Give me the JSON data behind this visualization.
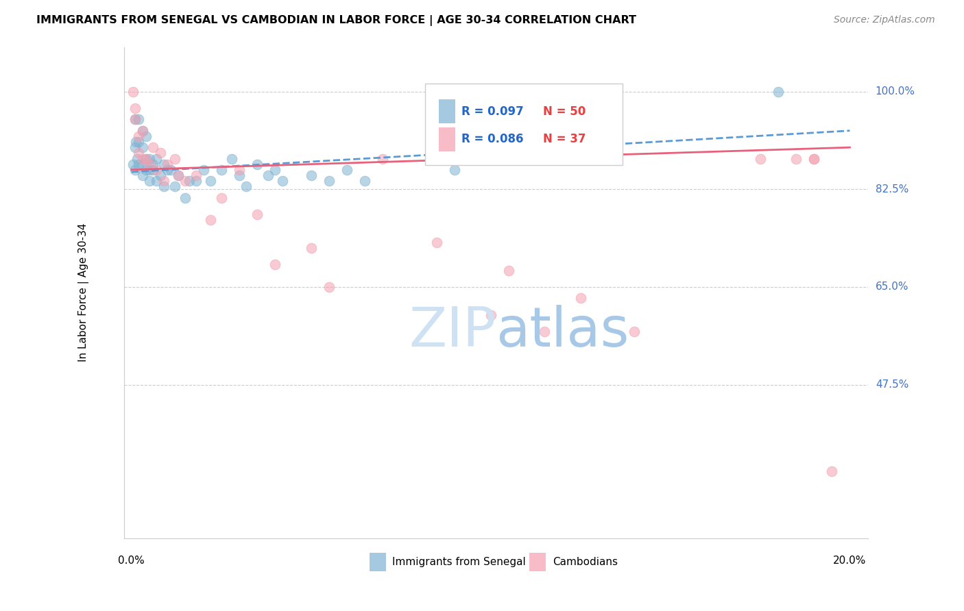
{
  "title": "IMMIGRANTS FROM SENEGAL VS CAMBODIAN IN LABOR FORCE | AGE 30-34 CORRELATION CHART",
  "source": "Source: ZipAtlas.com",
  "ylabel": "In Labor Force | Age 30-34",
  "blue_color": "#7fb3d3",
  "pink_color": "#f4a0b0",
  "trendline_blue_color": "#5b9bd5",
  "trendline_pink_color": "#e8607a",
  "label_senegal": "Immigrants from Senegal",
  "label_cambodian": "Cambodians",
  "ytick_values": [
    1.0,
    0.825,
    0.65,
    0.475
  ],
  "ytick_labels": [
    "100.0%",
    "82.5%",
    "65.0%",
    "47.5%"
  ],
  "ymin": 0.2,
  "ymax": 1.08,
  "xmin": -0.002,
  "xmax": 0.205,
  "senegal_x": [
    0.0005,
    0.001,
    0.001,
    0.001,
    0.0012,
    0.0015,
    0.002,
    0.002,
    0.002,
    0.003,
    0.003,
    0.003,
    0.003,
    0.004,
    0.004,
    0.004,
    0.005,
    0.005,
    0.005,
    0.006,
    0.006,
    0.007,
    0.007,
    0.008,
    0.009,
    0.009,
    0.01,
    0.011,
    0.012,
    0.013,
    0.015,
    0.016,
    0.018,
    0.02,
    0.022,
    0.025,
    0.028,
    0.03,
    0.032,
    0.035,
    0.038,
    0.04,
    0.042,
    0.05,
    0.055,
    0.06,
    0.065,
    0.09,
    0.11,
    0.18
  ],
  "senegal_y": [
    0.87,
    0.95,
    0.9,
    0.86,
    0.91,
    0.88,
    0.95,
    0.91,
    0.87,
    0.93,
    0.9,
    0.87,
    0.85,
    0.92,
    0.88,
    0.86,
    0.88,
    0.86,
    0.84,
    0.87,
    0.86,
    0.88,
    0.84,
    0.85,
    0.87,
    0.83,
    0.86,
    0.86,
    0.83,
    0.85,
    0.81,
    0.84,
    0.84,
    0.86,
    0.84,
    0.86,
    0.88,
    0.85,
    0.83,
    0.87,
    0.85,
    0.86,
    0.84,
    0.85,
    0.84,
    0.86,
    0.84,
    0.86,
    0.88,
    1.0
  ],
  "cambodian_x": [
    0.0005,
    0.001,
    0.001,
    0.002,
    0.002,
    0.003,
    0.003,
    0.004,
    0.005,
    0.006,
    0.007,
    0.008,
    0.009,
    0.01,
    0.012,
    0.013,
    0.015,
    0.018,
    0.022,
    0.025,
    0.03,
    0.035,
    0.04,
    0.05,
    0.055,
    0.07,
    0.085,
    0.1,
    0.105,
    0.115,
    0.125,
    0.14,
    0.175,
    0.185,
    0.19,
    0.195,
    0.19
  ],
  "cambodian_y": [
    1.0,
    0.97,
    0.95,
    0.92,
    0.89,
    0.93,
    0.88,
    0.88,
    0.87,
    0.9,
    0.86,
    0.89,
    0.84,
    0.87,
    0.88,
    0.85,
    0.84,
    0.85,
    0.77,
    0.81,
    0.86,
    0.78,
    0.69,
    0.72,
    0.65,
    0.88,
    0.73,
    0.6,
    0.68,
    0.57,
    0.63,
    0.57,
    0.88,
    0.88,
    0.88,
    0.32,
    0.88
  ]
}
